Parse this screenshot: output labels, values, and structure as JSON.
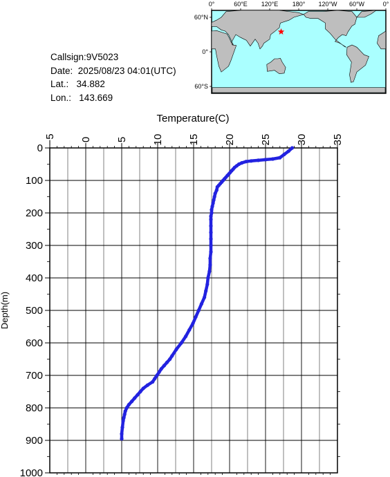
{
  "info": {
    "callsign": "Callsign:9V5023",
    "date_label": "Date:",
    "date_value": "2025/08/23 04:01(UTC)",
    "lat_label": "Lat.:",
    "lat_value": "34.882",
    "lon_label": "Lon.:",
    "lon_value": "143.669"
  },
  "map": {
    "lon_ticks": [
      "0°",
      "60°E",
      "120°E",
      "180°",
      "120°W",
      "60°W",
      "0°"
    ],
    "lat_ticks": [
      "60°N",
      "0°",
      "60°S"
    ],
    "ocean_color": "#aaffff",
    "land_color": "#bebebe",
    "marker_color": "#ff0000",
    "marker": {
      "lat": 34.882,
      "lon": 143.669
    }
  },
  "chart_data": {
    "type": "line",
    "xlabel": "Temperature(C)",
    "ylabel": "Depth(m)",
    "xlim": [
      -5,
      35
    ],
    "ylim": [
      0,
      1000
    ],
    "y_inverted": true,
    "x_axis_position": "top",
    "x_ticks": [
      -5,
      0,
      5,
      10,
      15,
      20,
      25,
      30,
      35
    ],
    "y_ticks": [
      0,
      100,
      200,
      300,
      400,
      500,
      600,
      700,
      800,
      900,
      1000
    ],
    "grid": true,
    "series_color": "#2222e0",
    "series": [
      {
        "x": [
          28.7,
          28.2,
          27.6,
          27.0,
          26.0,
          25.0,
          24.0,
          23.0,
          22.3,
          21.7,
          21.3,
          21.0,
          20.7,
          20.5,
          20.3,
          20.1,
          19.9,
          19.7,
          19.5,
          19.3,
          19.1,
          18.9,
          18.7,
          18.5,
          18.3,
          18.2,
          18.0,
          17.9,
          17.8,
          17.7,
          17.6,
          17.5,
          17.5,
          17.4,
          17.4,
          17.4,
          17.4,
          17.4,
          17.4,
          17.4,
          17.3,
          17.3,
          17.2,
          17.0,
          16.9,
          16.7,
          16.5,
          16.1,
          15.7,
          15.3,
          14.9,
          14.4,
          13.9,
          13.3,
          12.6,
          12.0,
          11.7,
          11.3,
          10.9,
          10.5,
          10.2,
          9.9,
          9.6,
          9.3,
          8.6,
          8.0,
          7.6,
          7.2,
          6.8,
          6.4,
          6.0,
          5.7,
          5.5,
          5.4,
          5.3,
          5.2,
          5.1,
          5.0,
          5.0
        ],
        "y": [
          0,
          10,
          20,
          30,
          34,
          36,
          38,
          40,
          42,
          46,
          50,
          55,
          60,
          65,
          70,
          75,
          80,
          85,
          90,
          95,
          100,
          105,
          110,
          115,
          120,
          130,
          140,
          150,
          160,
          170,
          180,
          190,
          200,
          210,
          220,
          240,
          260,
          280,
          300,
          320,
          340,
          360,
          380,
          400,
          420,
          440,
          460,
          480,
          500,
          520,
          540,
          560,
          580,
          600,
          620,
          640,
          650,
          660,
          670,
          680,
          690,
          700,
          710,
          720,
          730,
          740,
          750,
          760,
          770,
          780,
          790,
          800,
          810,
          820,
          830,
          840,
          860,
          880,
          895
        ]
      }
    ]
  }
}
